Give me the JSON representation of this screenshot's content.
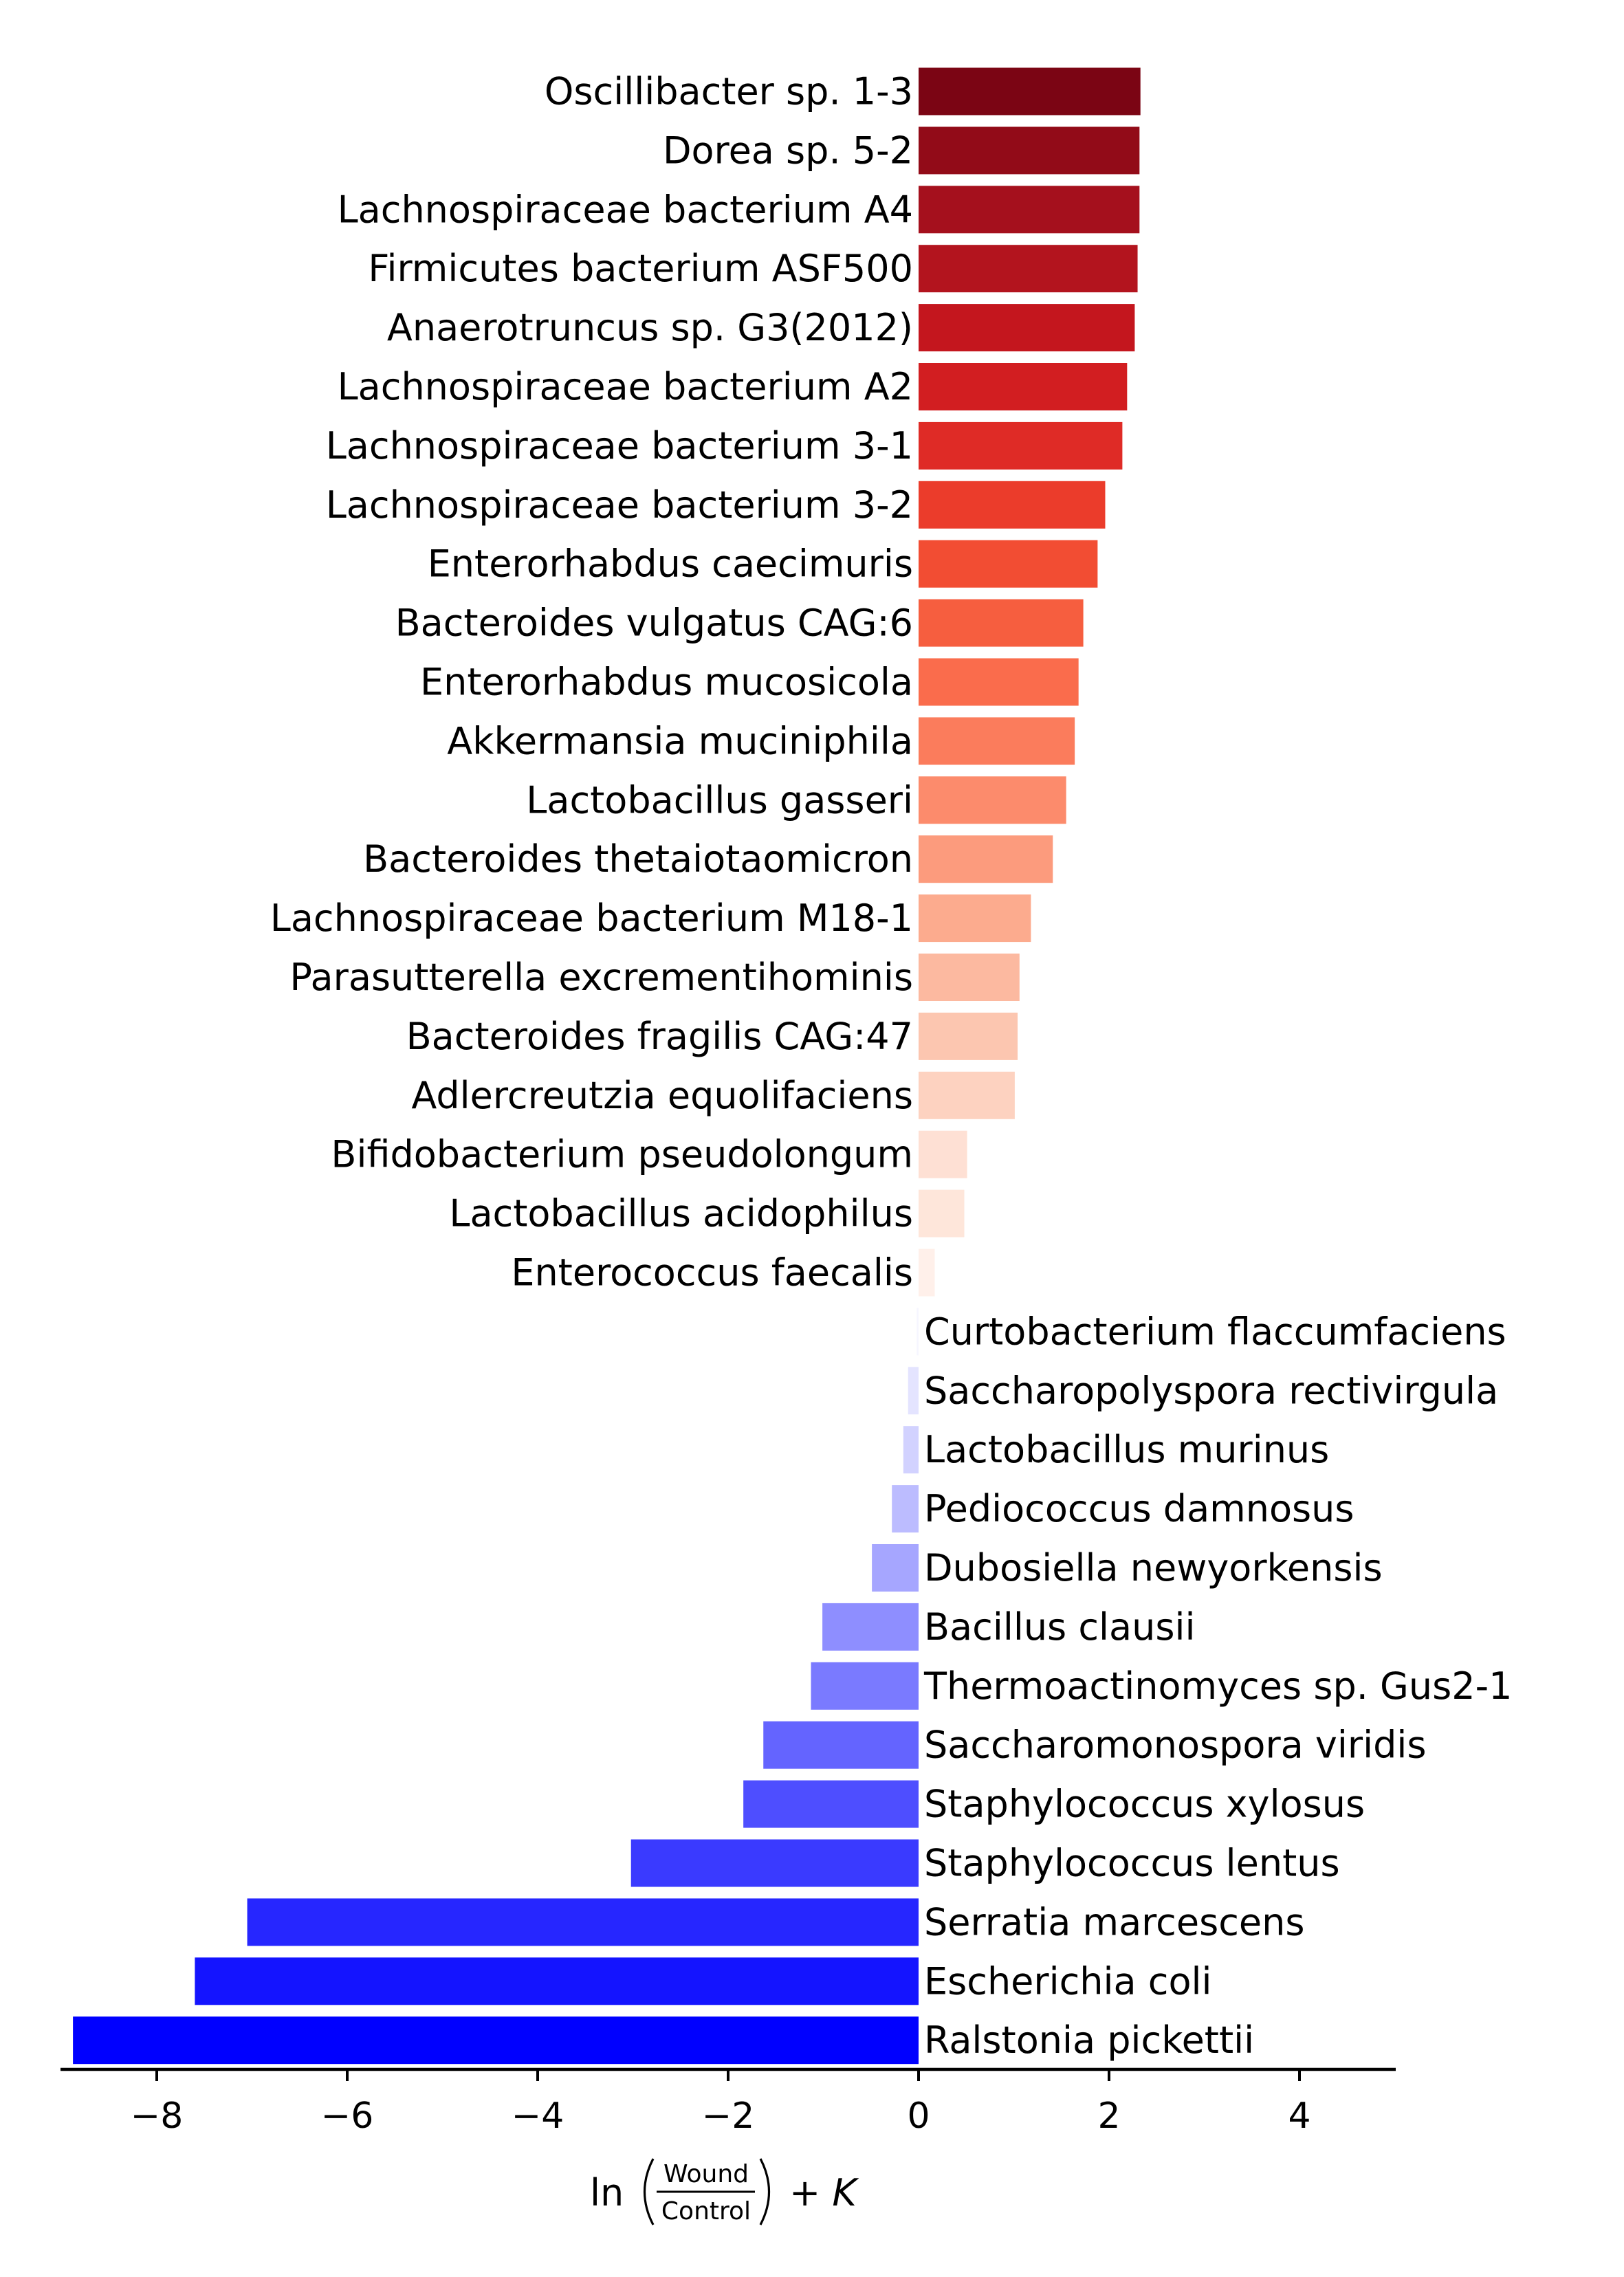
{
  "chart_data": {
    "type": "bar",
    "orientation": "horizontal",
    "categories": [
      "Oscillibacter sp. 1-3",
      "Dorea sp. 5-2",
      "Lachnospiraceae bacterium A4",
      "Firmicutes bacterium ASF500",
      "Anaerotruncus sp. G3(2012)",
      "Lachnospiraceae bacterium A2",
      "Lachnospiraceae bacterium 3-1",
      "Lachnospiraceae bacterium 3-2",
      "Enterorhabdus caecimuris",
      "Bacteroides vulgatus CAG:6",
      "Enterorhabdus mucosicola",
      "Akkermansia muciniphila",
      "Lactobacillus gasseri",
      "Bacteroides thetaiotaomicron",
      "Lachnospiraceae bacterium M18-1",
      "Parasutterella excrementihominis",
      "Bacteroides fragilis CAG:47",
      "Adlercreutzia equolifaciens",
      "Bifidobacterium pseudolongum",
      "Lactobacillus acidophilus",
      "Enterococcus faecalis",
      "Curtobacterium flaccumfaciens",
      "Saccharopolyspora rectivirgula",
      "Lactobacillus murinus",
      "Pediococcus damnosus",
      "Dubosiella newyorkensis",
      "Bacillus clausii",
      "Thermoactinomyces sp. Gus2-1",
      "Saccharomonospora viridis",
      "Staphylococcus xylosus",
      "Staphylococcus lentus",
      "Serratia marcescens",
      "Escherichia coli",
      "Ralstonia pickettii"
    ],
    "values": [
      2.33,
      2.32,
      2.32,
      2.3,
      2.27,
      2.19,
      2.14,
      1.96,
      1.88,
      1.73,
      1.68,
      1.64,
      1.55,
      1.41,
      1.18,
      1.06,
      1.04,
      1.01,
      0.51,
      0.48,
      0.17,
      -0.02,
      -0.11,
      -0.16,
      -0.28,
      -0.49,
      -1.01,
      -1.13,
      -1.63,
      -1.84,
      -3.02,
      -7.05,
      -7.6,
      -8.88
    ],
    "colors": [
      "#7b0514",
      "#920b18",
      "#a5101d",
      "#b3141e",
      "#c4161e",
      "#d21e21",
      "#df2b26",
      "#eb3c2b",
      "#f24d33",
      "#f65e3f",
      "#fa6c4c",
      "#fb7c5c",
      "#fc8b6c",
      "#fc9b7d",
      "#fcab8e",
      "#fcb9a0",
      "#fcc6b0",
      "#fdd2c0",
      "#fee0d4",
      "#fee6da",
      "#fff0ea",
      "#f6f6ff",
      "#e4e4ff",
      "#d2d2ff",
      "#bcbcff",
      "#a6a6ff",
      "#8e8eff",
      "#7a7aff",
      "#6464ff",
      "#4e4eff",
      "#3a3aff",
      "#2626ff",
      "#1414ff",
      "#0000ff"
    ],
    "xlim": [
      -9,
      5
    ],
    "xticks": [
      -8,
      -6,
      -4,
      -2,
      0,
      2,
      4
    ],
    "xtick_labels": [
      "−8",
      "−6",
      "−4",
      "−2",
      "0",
      "2",
      "4"
    ],
    "xlabel": {
      "prefix": "ln",
      "numerator": "Wound",
      "denominator": "Control",
      "suffix": "+ K"
    },
    "grid": false,
    "legend": "none"
  }
}
